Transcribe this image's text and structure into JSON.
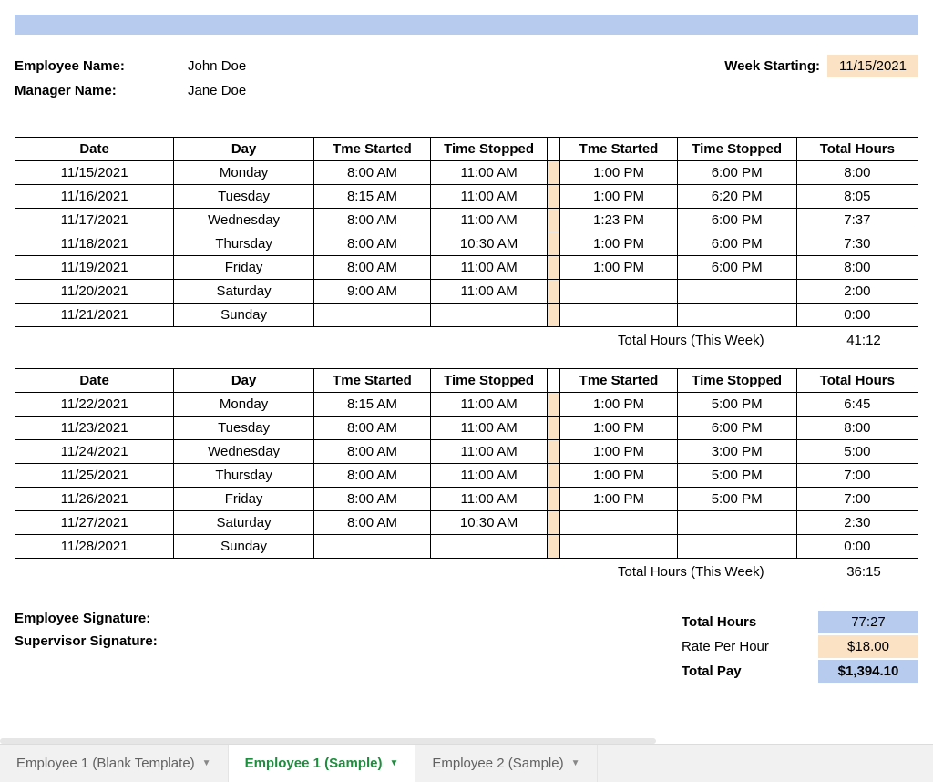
{
  "colors": {
    "header_bar": "#b7cbee",
    "accent_peach": "#fbe2c5",
    "accent_blue": "#b7cbee",
    "border": "#000000",
    "tab_bg": "#f1f1f1",
    "tab_active_text": "#1e8e3e",
    "tab_inactive_text": "#616161"
  },
  "header": {
    "employee_label": "Employee Name:",
    "employee_value": "John Doe",
    "manager_label": "Manager Name:",
    "manager_value": "Jane Doe",
    "week_start_label": "Week Starting:",
    "week_start_value": "11/15/2021"
  },
  "table_headers": {
    "date": "Date",
    "day": "Day",
    "start1": "Tme Started",
    "stop1": "Time Stopped",
    "start2": "Tme Started",
    "stop2": "Time Stopped",
    "total": "Total Hours"
  },
  "week1_rows": [
    {
      "date": "11/15/2021",
      "day": "Monday",
      "s1": "8:00 AM",
      "e1": "11:00 AM",
      "s2": "1:00 PM",
      "e2": "6:00 PM",
      "tot": "8:00"
    },
    {
      "date": "11/16/2021",
      "day": "Tuesday",
      "s1": "8:15 AM",
      "e1": "11:00 AM",
      "s2": "1:00 PM",
      "e2": "6:20 PM",
      "tot": "8:05"
    },
    {
      "date": "11/17/2021",
      "day": "Wednesday",
      "s1": "8:00 AM",
      "e1": "11:00 AM",
      "s2": "1:23 PM",
      "e2": "6:00 PM",
      "tot": "7:37"
    },
    {
      "date": "11/18/2021",
      "day": "Thursday",
      "s1": "8:00 AM",
      "e1": "10:30 AM",
      "s2": "1:00 PM",
      "e2": "6:00 PM",
      "tot": "7:30"
    },
    {
      "date": "11/19/2021",
      "day": "Friday",
      "s1": "8:00 AM",
      "e1": "11:00 AM",
      "s2": "1:00 PM",
      "e2": "6:00 PM",
      "tot": "8:00"
    },
    {
      "date": "11/20/2021",
      "day": "Saturday",
      "s1": "9:00 AM",
      "e1": "11:00 AM",
      "s2": "",
      "e2": "",
      "tot": "2:00"
    },
    {
      "date": "11/21/2021",
      "day": "Sunday",
      "s1": "",
      "e1": "",
      "s2": "",
      "e2": "",
      "tot": "0:00"
    }
  ],
  "week1_total_label": "Total Hours (This Week)",
  "week1_total_value": "41:12",
  "week2_rows": [
    {
      "date": "11/22/2021",
      "day": "Monday",
      "s1": "8:15 AM",
      "e1": "11:00 AM",
      "s2": "1:00 PM",
      "e2": "5:00 PM",
      "tot": "6:45"
    },
    {
      "date": "11/23/2021",
      "day": "Tuesday",
      "s1": "8:00 AM",
      "e1": "11:00 AM",
      "s2": "1:00 PM",
      "e2": "6:00 PM",
      "tot": "8:00"
    },
    {
      "date": "11/24/2021",
      "day": "Wednesday",
      "s1": "8:00 AM",
      "e1": "11:00 AM",
      "s2": "1:00 PM",
      "e2": "3:00 PM",
      "tot": "5:00"
    },
    {
      "date": "11/25/2021",
      "day": "Thursday",
      "s1": "8:00 AM",
      "e1": "11:00 AM",
      "s2": "1:00 PM",
      "e2": "5:00 PM",
      "tot": "7:00"
    },
    {
      "date": "11/26/2021",
      "day": "Friday",
      "s1": "8:00 AM",
      "e1": "11:00 AM",
      "s2": "1:00 PM",
      "e2": "5:00 PM",
      "tot": "7:00"
    },
    {
      "date": "11/27/2021",
      "day": "Saturday",
      "s1": "8:00 AM",
      "e1": "10:30 AM",
      "s2": "",
      "e2": "",
      "tot": "2:30"
    },
    {
      "date": "11/28/2021",
      "day": "Sunday",
      "s1": "",
      "e1": "",
      "s2": "",
      "e2": "",
      "tot": "0:00"
    }
  ],
  "week2_total_label": "Total Hours (This Week)",
  "week2_total_value": "36:15",
  "signatures": {
    "employee": "Employee Signature:",
    "supervisor": "Supervisor Signature:"
  },
  "totals": {
    "hours_label": "Total Hours",
    "hours_value": "77:27",
    "rate_label": "Rate Per Hour",
    "rate_value": "$18.00",
    "pay_label": "Total Pay",
    "pay_value": "$1,394.10"
  },
  "tabs": [
    {
      "label": "Employee 1 (Blank Template)",
      "active": false
    },
    {
      "label": "Employee 1 (Sample)",
      "active": true
    },
    {
      "label": "Employee 2 (Sample)",
      "active": false
    }
  ]
}
